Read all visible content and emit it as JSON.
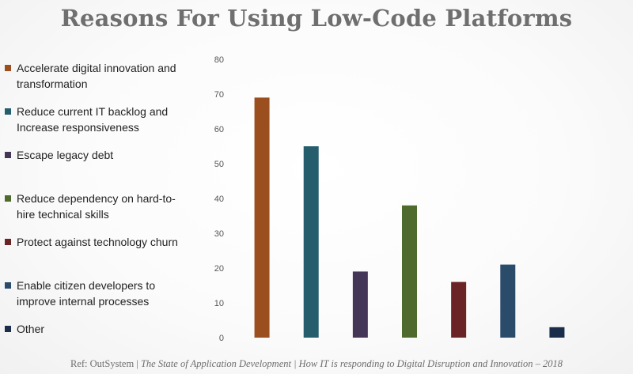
{
  "title": "Reasons For Using Low-Code Platforms",
  "footer": {
    "ref": "Ref: OutSystem |",
    "source": "The State of Application Development | How IT is responding to Digital Disruption and Innovation – 2018"
  },
  "chart_data": {
    "type": "bar",
    "title": "Reasons For Using Low-Code Platforms",
    "xlabel": "",
    "ylabel": "",
    "ylim": [
      0,
      80
    ],
    "yticks": [
      0,
      10,
      20,
      30,
      40,
      50,
      60,
      70,
      80
    ],
    "grid": false,
    "legend_position": "left",
    "categories": [
      "Accelerate digital innovation and transformation",
      "Reduce current IT backlog and Increase responsiveness",
      "Escape legacy debt",
      "Reduce dependency on hard-to-hire technical skills",
      "Protect against technology churn",
      "Enable citizen developers to improve internal processes",
      "Other"
    ],
    "values": [
      69,
      55,
      19,
      38,
      16,
      21,
      3
    ],
    "colors": [
      "#9c4f1e",
      "#255d6d",
      "#443656",
      "#4f6a2d",
      "#6b2426",
      "#2b4b6b",
      "#1a2d4a"
    ]
  },
  "legend": [
    {
      "lines": [
        "Accelerate digital innovation and",
        "transformation"
      ],
      "color": "#9c4f1e"
    },
    {
      "lines": [
        "Reduce current IT backlog and",
        "Increase responsiveness"
      ],
      "color": "#255d6d"
    },
    {
      "lines": [
        "Escape legacy debt"
      ],
      "color": "#443656"
    },
    {
      "lines": [
        "Reduce dependency on hard-to-",
        "hire technical skills"
      ],
      "color": "#4f6a2d"
    },
    {
      "lines": [
        "Protect against technology churn"
      ],
      "color": "#6b2426"
    },
    {
      "lines": [
        "Enable citizen developers to",
        "improve internal processes"
      ],
      "color": "#2b4b6b"
    },
    {
      "lines": [
        "Other"
      ],
      "color": "#1a2d4a"
    }
  ]
}
